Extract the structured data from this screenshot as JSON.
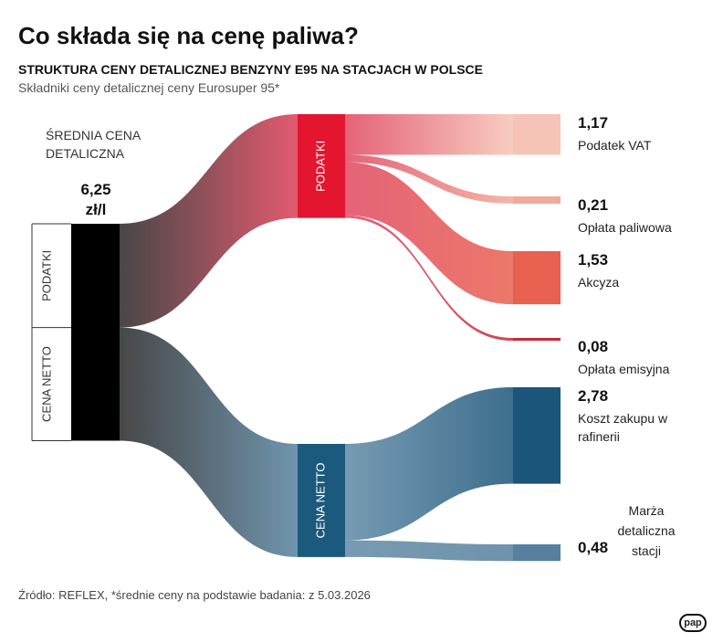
{
  "chart_data": {
    "type": "sankey",
    "title": "Co składa się na cenę paliwa?",
    "subtitle": "STRUKTURA CENY DETALICZNEJ BENZYNY E95 NA STACJACH W POLSCE",
    "description": "Składniki ceny detalicznej ceny Eurosuper 95*",
    "source_label": "ŚREDNIA CENA DETALICZNA",
    "total": 6.25,
    "total_label": "6,25",
    "total_unit": "zł/l",
    "total_color": "#000000",
    "groups": [
      {
        "name": "PODATKI",
        "color": "#e3152f",
        "flow_color": "#e0485f",
        "items": [
          {
            "name": "Podatek VAT",
            "value": 1.17,
            "value_label": "1,17",
            "color": "#f6c4b6"
          },
          {
            "name": "Opłata paliwowa",
            "value": 0.21,
            "value_label": "0,21",
            "color": "#f2a99a"
          },
          {
            "name": "Akcyza",
            "value": 1.53,
            "value_label": "1,53",
            "color": "#e8604f"
          },
          {
            "name": "Opłata emisyjna",
            "value": 0.08,
            "value_label": "0,08",
            "color": "#c9283a"
          }
        ]
      },
      {
        "name": "CENA NETTO",
        "color": "#1c5a7d",
        "flow_color": "#5f89a5",
        "items": [
          {
            "name": "Koszt zakupu w rafinerii",
            "value": 2.78,
            "value_label": "2,78",
            "color": "#1b557a"
          },
          {
            "name": "Marża detaliczna stacji",
            "value": 0.48,
            "value_label": "0,48",
            "color": "#56809e"
          }
        ]
      }
    ],
    "footnote": "Źródło: REFLEX, *średnie ceny na podstawie badania: z 5.03.2026",
    "logo": "pap"
  }
}
